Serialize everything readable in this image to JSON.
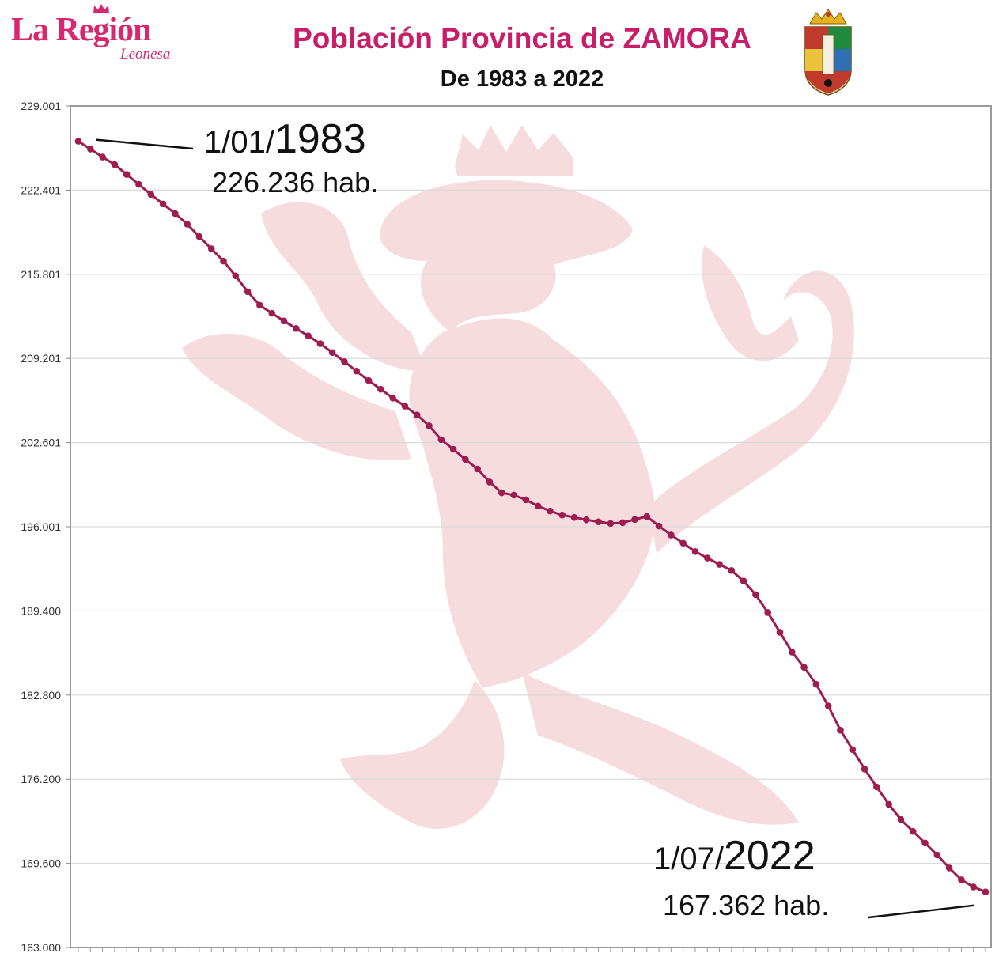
{
  "logo": {
    "name": "La Región",
    "sub": "Leonesa"
  },
  "header": {
    "title": "Población Provincia de ZAMORA",
    "subtitle": "De 1983 a 2022"
  },
  "annotations": {
    "start": {
      "date_prefix": "1/01/",
      "year": "1983",
      "pop": "226.236 hab."
    },
    "end": {
      "date_prefix": "1/07/",
      "year": "2022",
      "pop": "167.362 hab."
    }
  },
  "colors": {
    "line": "#9e1d51",
    "title": "#c81e6a",
    "logo": "#d8266f",
    "watermark": "#f6dcdf",
    "grid": "#d9d9d9"
  },
  "chart_data": {
    "type": "line",
    "title": "Población Provincia de ZAMORA",
    "subtitle": "De 1983 a 2022",
    "ylim": [
      163000,
      229001
    ],
    "yticks": [
      "163.000",
      "169.600",
      "176.200",
      "182.800",
      "189.400",
      "196.001",
      "202.601",
      "209.201",
      "215.801",
      "222.401",
      "229.001"
    ],
    "ytick_values": [
      163000,
      169600,
      176200,
      182800,
      189400,
      196001,
      202601,
      209201,
      215801,
      222401,
      229001
    ],
    "grid": true,
    "x_start": "1983-01",
    "x_end": "2022-07",
    "series": [
      {
        "values": [
          226236,
          225626,
          224998,
          224414,
          223632,
          222853,
          222063,
          221317,
          220571,
          219733,
          218757,
          217801,
          216837,
          215679,
          214436,
          213376,
          212746,
          212140,
          211551,
          210980,
          210359,
          209663,
          208946,
          208205,
          207468,
          206785,
          206094,
          205461,
          204766,
          203920,
          202831,
          202080,
          201280,
          200529,
          199510,
          198667,
          198483,
          198116,
          197626,
          197234,
          196918,
          196734,
          196547,
          196387,
          196257,
          196324,
          196569,
          196800,
          196060,
          195353,
          194713,
          194056,
          193550,
          193049,
          192568,
          191739,
          190667,
          189272,
          187724,
          186174,
          184978,
          183648,
          181943,
          180046,
          178525,
          176999,
          175593,
          174232,
          173036,
          172104,
          171202,
          170257,
          169241,
          168312,
          167751,
          167362
        ]
      }
    ]
  }
}
